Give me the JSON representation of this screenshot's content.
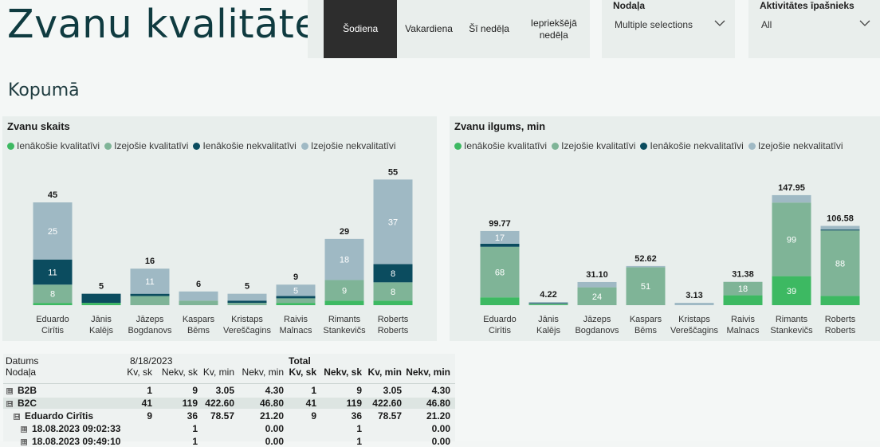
{
  "header": {
    "title": "Zvanu kvalitāte",
    "section_title": "Kopumā"
  },
  "period_slicer": {
    "options": [
      "Šodiena",
      "Vakardiena",
      "Šī nedēļa",
      "Iepriekšējā nedēļa"
    ],
    "selected": "Šodiena"
  },
  "filters": {
    "department": {
      "label": "Nodaļa",
      "value": "Multiple selections"
    },
    "owner": {
      "label": "Aktivitātes īpašnieks",
      "value": "All"
    }
  },
  "colors": {
    "incoming_quality": "#3db962",
    "outgoing_quality": "#7fb497",
    "incoming_nonquality": "#0b4c5f",
    "outgoing_nonquality": "#9fb9c4"
  },
  "chart_data": [
    {
      "type": "bar",
      "stacked": true,
      "title": "Zvanu skaits",
      "legend_placement": "top-left",
      "categories": [
        "Eduardo Cirītis",
        "Jānis Kalējs",
        "Jāzeps Bogdanovs",
        "Kaspars Bēms",
        "Kristaps Vereščagins",
        "Raivis Malnacs",
        "Rimants Stankevičs",
        "Roberts Roberts"
      ],
      "series": [
        {
          "name": "Ienākošie kvalitatīvi",
          "values": [
            1,
            1,
            0,
            0,
            0,
            1,
            2,
            2
          ]
        },
        {
          "name": "Izejošie kvalitatīvi",
          "values": [
            8,
            0,
            4,
            2,
            1,
            2,
            9,
            8
          ]
        },
        {
          "name": "Ienākošie nekvalitatīvi",
          "values": [
            11,
            4,
            1,
            0,
            1,
            1,
            0,
            8
          ]
        },
        {
          "name": "Izejošie nekvalitatīvi",
          "values": [
            25,
            0,
            11,
            4,
            3,
            5,
            18,
            37
          ]
        }
      ],
      "totals": [
        45,
        5,
        16,
        6,
        5,
        9,
        29,
        55
      ],
      "ylim": [
        0,
        60
      ]
    },
    {
      "type": "bar",
      "stacked": true,
      "title": "Zvanu ilgums, min",
      "legend_placement": "top-left",
      "categories": [
        "Eduardo Cirītis",
        "Jānis Kalējs",
        "Jāzeps Bogdanovs",
        "Kaspars Bēms",
        "Kristaps Vereščagins",
        "Raivis Malnacs",
        "Rimants Stankevičs",
        "Roberts Roberts"
      ],
      "series": [
        {
          "name": "Ienākošie kvalitatīvi",
          "values": [
            10.5,
            1.0,
            0,
            0,
            0,
            13.3,
            39,
            12.4
          ]
        },
        {
          "name": "Izejošie kvalitatīvi",
          "values": [
            68,
            1.0,
            24,
            51,
            0,
            18,
            99,
            88
          ]
        },
        {
          "name": "Ienākošie nekvalitatīvi",
          "values": [
            4.2,
            1.0,
            0,
            0,
            0,
            0,
            0,
            1.3
          ]
        },
        {
          "name": "Izejošie nekvalitatīvi",
          "values": [
            17,
            1.2,
            7.1,
            1.6,
            3.13,
            0.1,
            9.95,
            4.9
          ]
        }
      ],
      "totals": [
        "99.77",
        "4.22",
        "31.10",
        "52.62",
        "3.13",
        "31.38",
        "147.95",
        "106.58"
      ],
      "ylim": [
        0,
        165
      ]
    }
  ],
  "matrix": {
    "row_headers": [
      "Datums",
      "Nodaļa"
    ],
    "date_col": "8/18/2023",
    "total_col": "Total",
    "measure_headers": [
      "Kv, sk",
      "Nekv, sk",
      "Kv, min",
      "Nekv, min"
    ],
    "rows": [
      {
        "label": "B2B",
        "expand": "⊞",
        "level": 0,
        "bold": true,
        "values": [
          "1",
          "9",
          "3.05",
          "4.30"
        ],
        "totals": [
          "1",
          "9",
          "3.05",
          "4.30"
        ]
      },
      {
        "label": "B2C",
        "expand": "⊟",
        "level": 0,
        "bold": true,
        "values": [
          "41",
          "119",
          "422.60",
          "46.80"
        ],
        "totals": [
          "41",
          "119",
          "422.60",
          "46.80"
        ]
      },
      {
        "label": "Eduardo Cirītis",
        "expand": "⊟",
        "level": 1,
        "bold": true,
        "values": [
          "9",
          "36",
          "78.57",
          "21.20"
        ],
        "totals": [
          "9",
          "36",
          "78.57",
          "21.20"
        ]
      },
      {
        "label": "18.08.2023 09:02:33",
        "expand": "⊞",
        "level": 2,
        "bold": true,
        "values": [
          "",
          "1",
          "",
          "0.00"
        ],
        "totals": [
          "",
          "1",
          "",
          "0.00"
        ]
      },
      {
        "label": "18.08.2023 09:49:10",
        "expand": "⊞",
        "level": 2,
        "bold": true,
        "values": [
          "",
          "1",
          "",
          "0.00"
        ],
        "totals": [
          "",
          "1",
          "",
          "0.00"
        ]
      }
    ]
  }
}
